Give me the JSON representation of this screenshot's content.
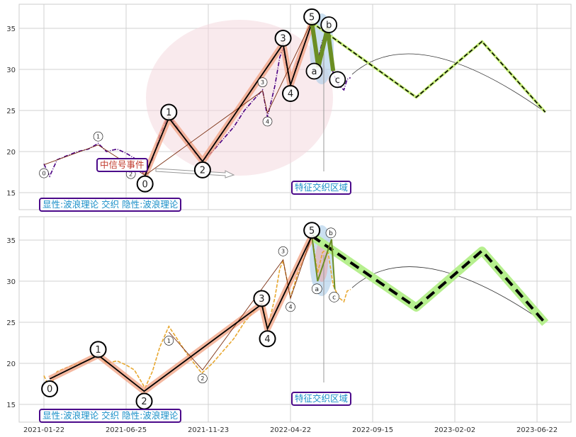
{
  "chart_data": {
    "type": "line",
    "panels": 2,
    "xlabel": "",
    "ylabel": "",
    "x_units": "trading days since 2021-01-22",
    "x_ticks": [
      {
        "x": 0,
        "label": "2021-01-22"
      },
      {
        "x": 100,
        "label": "2021-06-25"
      },
      {
        "x": 200,
        "label": "2021-11-23"
      },
      {
        "x": 300,
        "label": "2022-04-22"
      },
      {
        "x": 400,
        "label": "2022-09-15"
      },
      {
        "x": 500,
        "label": "2023-02-02"
      },
      {
        "x": 600,
        "label": "2023-06-22"
      }
    ],
    "xlim": [
      -30,
      642
    ],
    "y_ticks": [
      15,
      20,
      25,
      30,
      35
    ],
    "ylim": [
      12.9,
      37.9
    ],
    "grid": true,
    "price": [
      [
        0,
        18.5
      ],
      [
        7,
        17
      ],
      [
        16,
        19
      ],
      [
        28,
        19.5
      ],
      [
        41,
        20
      ],
      [
        54,
        20.3
      ],
      [
        66,
        21
      ],
      [
        76,
        20
      ],
      [
        89,
        20.3
      ],
      [
        100,
        19.8
      ],
      [
        110,
        19.2
      ],
      [
        123,
        17
      ],
      [
        132,
        19
      ],
      [
        141,
        22
      ],
      [
        152,
        24.5
      ],
      [
        162,
        23
      ],
      [
        175,
        21
      ],
      [
        192,
        18.8
      ],
      [
        205,
        20
      ],
      [
        218,
        21.5
      ],
      [
        231,
        23
      ],
      [
        244,
        25
      ],
      [
        257,
        26.5
      ],
      [
        266,
        27.5
      ],
      [
        272,
        24.2
      ],
      [
        281,
        28
      ],
      [
        287,
        31.5
      ],
      [
        291,
        32.5
      ],
      [
        296,
        30
      ],
      [
        300,
        28
      ],
      [
        309,
        31
      ],
      [
        317,
        33
      ],
      [
        326,
        35.5
      ],
      [
        333,
        31
      ],
      [
        339,
        33.5
      ],
      [
        345,
        34
      ],
      [
        352,
        29.5
      ],
      [
        359,
        28
      ],
      [
        365,
        27.5
      ],
      [
        369,
        28.8
      ],
      [
        373,
        29
      ]
    ],
    "top": {
      "price_color": "#4b0082",
      "major_wave": {
        "points": [
          [
            123,
            17.1
          ],
          [
            152,
            24.1
          ],
          [
            193,
            18.8
          ],
          [
            291,
            33.1
          ],
          [
            300,
            28.1
          ],
          [
            326,
            35.7
          ]
        ],
        "labels": [
          "0",
          "1",
          "2",
          "3",
          "4",
          "5"
        ]
      },
      "minor_wave": {
        "points": [
          [
            0,
            18.4
          ],
          [
            66,
            20.8
          ],
          [
            123,
            17.1
          ],
          [
            266,
            27.4
          ],
          [
            272,
            24.7
          ],
          [
            326,
            35.9
          ]
        ],
        "labels": [
          "0",
          "1",
          "2",
          "3",
          "4",
          "5"
        ]
      },
      "correction": {
        "points": [
          [
            326,
            35.7
          ],
          [
            334,
            30.3
          ],
          [
            345,
            35
          ],
          [
            352,
            29.8
          ]
        ],
        "labels": [
          "",
          "a",
          "b",
          "c"
        ]
      },
      "projection": [
        [
          326,
          35.7
        ],
        [
          453,
          26.6
        ],
        [
          533,
          33.4
        ],
        [
          610,
          24.8
        ]
      ],
      "arc": [
        [
          375,
          29.4
        ],
        [
          472,
          31.6
        ],
        [
          610,
          24.8
        ]
      ],
      "annotations": {
        "signal": "中信号事件",
        "zone": "特征交织区域",
        "legend": "显性:波浪理论 交织 隐性:波浪理论"
      }
    },
    "bottom": {
      "price_color": "#e8a830",
      "major_wave": {
        "points": [
          [
            7,
            18.1
          ],
          [
            66,
            21.0
          ],
          [
            122,
            16.6
          ],
          [
            265,
            27.2
          ],
          [
            272,
            24.2
          ],
          [
            326,
            35.5
          ]
        ],
        "labels": [
          "0",
          "1",
          "2",
          "3",
          "4",
          "5"
        ]
      },
      "minor_wave": {
        "points": [
          [
            152,
            23.8
          ],
          [
            193,
            19.2
          ],
          [
            291,
            32.6
          ],
          [
            300,
            27.9
          ],
          [
            326,
            35.5
          ]
        ],
        "labels": [
          "1",
          "2",
          "3",
          "4",
          "5"
        ]
      },
      "correction": {
        "points": [
          [
            326,
            35.5
          ],
          [
            333,
            30
          ],
          [
            350,
            35.1
          ],
          [
            354,
            29
          ]
        ],
        "labels": [
          "",
          "a",
          "b",
          "c"
        ]
      },
      "projection": [
        [
          326,
          35.5
        ],
        [
          453,
          26.8
        ],
        [
          533,
          33.7
        ],
        [
          610,
          24.9
        ]
      ],
      "arc": [
        [
          375,
          29.2
        ],
        [
          472,
          31.5
        ],
        [
          610,
          24.9
        ]
      ],
      "annotations": {
        "zone": "特征交织区域",
        "legend": "显性:波浪理论 交织 隐性:波浪理论"
      }
    }
  }
}
